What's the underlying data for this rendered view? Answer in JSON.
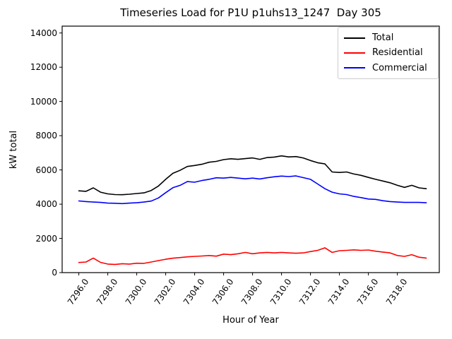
{
  "figure": {
    "background": "#ffffff",
    "text_color": "#000000"
  },
  "chart_data": {
    "type": "line",
    "title": "Timeseries Load for P1U p1uhs13_1247  Day 305",
    "xlabel": "Hour of Year",
    "ylabel": "kW total",
    "xlim": [
      7294.85,
      7320.9
    ],
    "ylim": [
      0,
      14400
    ],
    "grid": false,
    "legend_position": "upper right",
    "x_ticks": [
      {
        "value": 7296,
        "label": "7296.0"
      },
      {
        "value": 7298,
        "label": "7298.0"
      },
      {
        "value": 7300,
        "label": "7300.0"
      },
      {
        "value": 7302,
        "label": "7302.0"
      },
      {
        "value": 7304,
        "label": "7304.0"
      },
      {
        "value": 7306,
        "label": "7306.0"
      },
      {
        "value": 7308,
        "label": "7308.0"
      },
      {
        "value": 7310,
        "label": "7310.0"
      },
      {
        "value": 7312,
        "label": "7312.0"
      },
      {
        "value": 7314,
        "label": "7314.0"
      },
      {
        "value": 7316,
        "label": "7316.0"
      },
      {
        "value": 7318,
        "label": "7318.0"
      }
    ],
    "y_ticks": [
      {
        "value": 0,
        "label": "0"
      },
      {
        "value": 2000,
        "label": "2000"
      },
      {
        "value": 4000,
        "label": "4000"
      },
      {
        "value": 6000,
        "label": "6000"
      },
      {
        "value": 8000,
        "label": "8000"
      },
      {
        "value": 10000,
        "label": "10000"
      },
      {
        "value": 12000,
        "label": "12000"
      },
      {
        "value": 14000,
        "label": "14000"
      }
    ],
    "x": [
      7296.0,
      7296.5,
      7297.0,
      7297.5,
      7298.0,
      7298.5,
      7299.0,
      7299.5,
      7300.0,
      7300.5,
      7301.0,
      7301.5,
      7302.0,
      7302.5,
      7303.0,
      7303.5,
      7304.0,
      7304.5,
      7305.0,
      7305.5,
      7306.0,
      7306.5,
      7307.0,
      7307.5,
      7308.0,
      7308.5,
      7309.0,
      7309.5,
      7310.0,
      7310.5,
      7311.0,
      7311.5,
      7312.0,
      7312.5,
      7313.0,
      7313.5,
      7314.0,
      7314.5,
      7315.0,
      7315.5,
      7316.0,
      7316.5,
      7317.0,
      7317.5,
      7318.0,
      7318.5,
      7319.0,
      7319.5,
      7320.0
    ],
    "series": [
      {
        "name": "Total",
        "color": "#000000",
        "values": [
          4780,
          4750,
          4950,
          4700,
          4600,
          4560,
          4550,
          4580,
          4620,
          4660,
          4800,
          5060,
          5450,
          5800,
          5980,
          6200,
          6260,
          6330,
          6450,
          6500,
          6600,
          6650,
          6620,
          6660,
          6700,
          6620,
          6720,
          6750,
          6820,
          6760,
          6780,
          6700,
          6550,
          6420,
          6350,
          5880,
          5850,
          5880,
          5760,
          5680,
          5560,
          5450,
          5350,
          5250,
          5100,
          4980,
          5100,
          4950,
          4900
        ]
      },
      {
        "name": "Residential",
        "color": "#ff0000",
        "values": [
          590,
          620,
          850,
          600,
          500,
          480,
          520,
          500,
          550,
          540,
          620,
          700,
          780,
          840,
          880,
          920,
          950,
          970,
          1000,
          960,
          1080,
          1050,
          1100,
          1180,
          1100,
          1150,
          1180,
          1150,
          1180,
          1150,
          1130,
          1150,
          1230,
          1300,
          1450,
          1180,
          1280,
          1300,
          1330,
          1300,
          1320,
          1250,
          1200,
          1150,
          1000,
          950,
          1050,
          900,
          850
        ]
      },
      {
        "name": "Commercial",
        "color": "#0000ff",
        "values": [
          4190,
          4150,
          4120,
          4100,
          4060,
          4050,
          4030,
          4060,
          4080,
          4120,
          4180,
          4360,
          4670,
          4960,
          5100,
          5320,
          5280,
          5380,
          5450,
          5540,
          5520,
          5560,
          5520,
          5480,
          5520,
          5470,
          5540,
          5600,
          5640,
          5610,
          5650,
          5550,
          5450,
          5180,
          4900,
          4700,
          4600,
          4560,
          4450,
          4380,
          4300,
          4280,
          4200,
          4150,
          4120,
          4100,
          4100,
          4100,
          4080
        ]
      }
    ]
  }
}
